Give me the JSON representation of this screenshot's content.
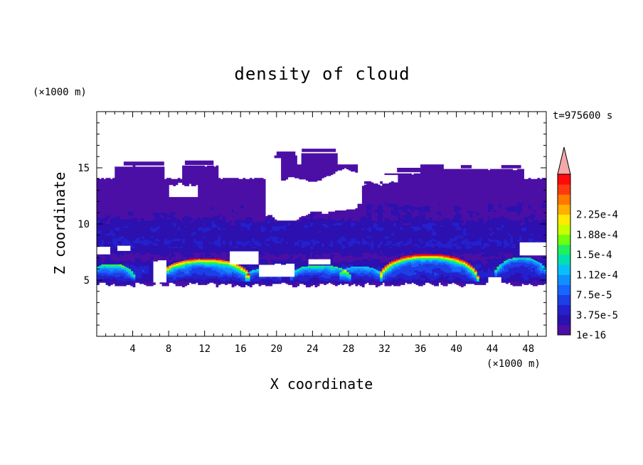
{
  "chart_data": {
    "type": "heatmap",
    "title": "density of cloud",
    "xlabel": "X coordinate",
    "ylabel": "Z coordinate",
    "x_unit": "(×1000 m)",
    "y_unit": "(×1000 m)",
    "time_label": "t=975600 s",
    "xlim": [
      0,
      50
    ],
    "ylim": [
      0,
      20
    ],
    "x_ticks": [
      "4",
      "8",
      "12",
      "16",
      "20",
      "24",
      "28",
      "32",
      "36",
      "40",
      "44",
      "48"
    ],
    "y_ticks": [
      "5",
      "10",
      "15"
    ],
    "colorbar": {
      "labels": [
        "1e-16",
        "3.75e-5",
        "7.5e-5",
        "1.12e-4",
        "1.5e-4",
        "1.88e-4",
        "2.25e-4"
      ],
      "colors": [
        "#4b0fa6",
        "#2c10b0",
        "#2320cc",
        "#1d3fe6",
        "#1766ff",
        "#1090ff",
        "#08c0f8",
        "#00e0b0",
        "#20f060",
        "#70ff10",
        "#c8ff00",
        "#ffea00",
        "#ffb000",
        "#ff7800",
        "#ff3a10",
        "#ff0a0a"
      ],
      "extend_color": "#f4a8a8"
    }
  }
}
